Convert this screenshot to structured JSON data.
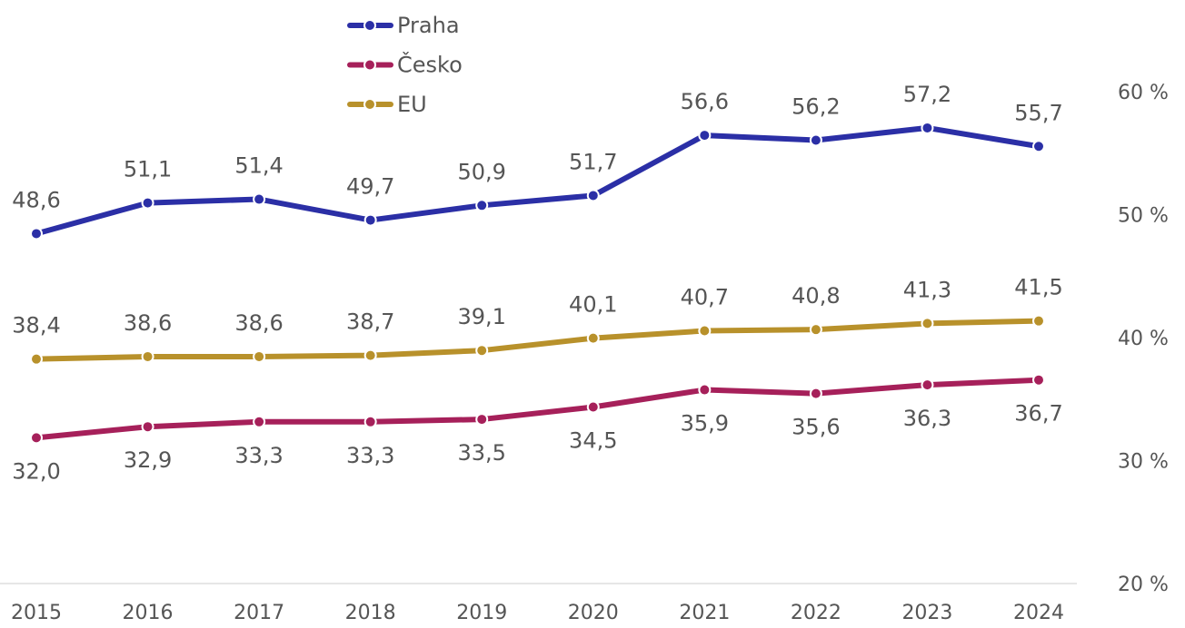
{
  "chart_data": {
    "type": "line",
    "categories": [
      "2015",
      "2016",
      "2017",
      "2018",
      "2019",
      "2020",
      "2021",
      "2022",
      "2023",
      "2024"
    ],
    "series": [
      {
        "name": "Praha",
        "color": "#2b2fa6",
        "label_position": "above",
        "values": [
          48.6,
          51.1,
          51.4,
          49.7,
          50.9,
          51.7,
          56.6,
          56.2,
          57.2,
          55.7
        ],
        "value_labels": [
          "48,6",
          "51,1",
          "51,4",
          "49,7",
          "50,9",
          "51,7",
          "56,6",
          "56,2",
          "57,2",
          "55,7"
        ]
      },
      {
        "name": "Česko",
        "color": "#a6205a",
        "label_position": "below",
        "values": [
          32.0,
          32.9,
          33.3,
          33.3,
          33.5,
          34.5,
          35.9,
          35.6,
          36.3,
          36.7
        ],
        "value_labels": [
          "32,0",
          "32,9",
          "33,3",
          "33,3",
          "33,5",
          "34,5",
          "35,9",
          "35,6",
          "36,3",
          "36,7"
        ]
      },
      {
        "name": "EU",
        "color": "#b8912b",
        "label_position": "above",
        "values": [
          38.4,
          38.6,
          38.6,
          38.7,
          39.1,
          40.1,
          40.7,
          40.8,
          41.3,
          41.5
        ],
        "value_labels": [
          "38,4",
          "38,6",
          "38,6",
          "38,7",
          "39,1",
          "40,1",
          "40,7",
          "40,8",
          "41,3",
          "41,5"
        ]
      }
    ],
    "ylim": [
      20,
      60
    ],
    "yticks": [
      {
        "value": 20,
        "label": "20 %"
      },
      {
        "value": 30,
        "label": "30 %"
      },
      {
        "value": 40,
        "label": "40 %"
      },
      {
        "value": 50,
        "label": "50 %"
      },
      {
        "value": 60,
        "label": "60 %"
      }
    ],
    "y_axis_position": "right",
    "grid": false,
    "legend": "top"
  }
}
